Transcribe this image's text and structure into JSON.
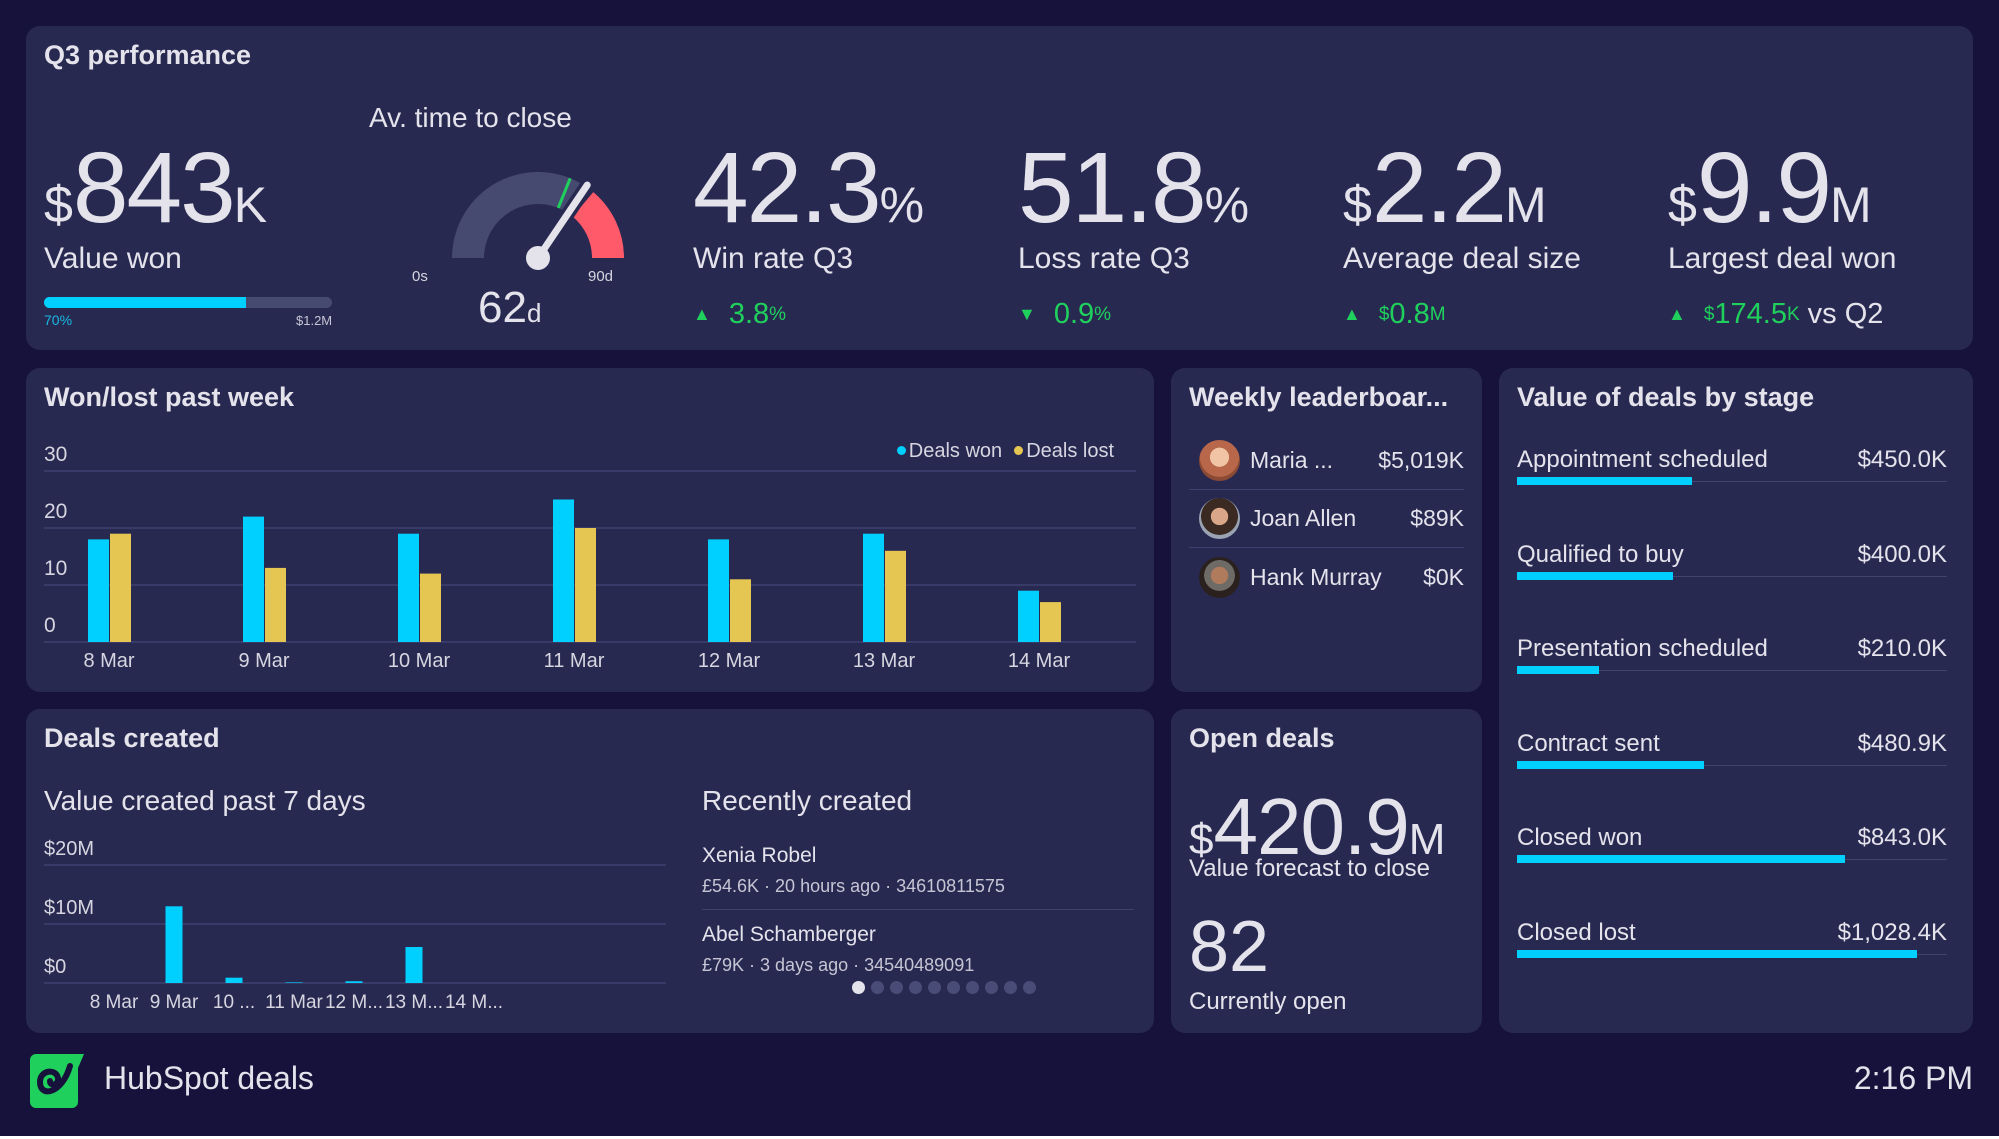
{
  "colors": {
    "background": "#17123b",
    "panel": "#282951",
    "accent_cyan": "#00d0ff",
    "accent_yellow": "#e6c653",
    "positive_green": "#1fd15c",
    "gauge_red": "#ff5a6a",
    "gauge_track": "#474a70"
  },
  "q3": {
    "title": "Q3 performance",
    "value_won": {
      "currency": "$",
      "number": "843",
      "unit": "K",
      "label": "Value won",
      "progress": 0.7,
      "progress_label": "70%",
      "target_label": "$1.2M"
    },
    "time_to_close": {
      "title": "Av. time to close",
      "value": 62,
      "value_text": "62",
      "unit": "d",
      "min_label": "0s",
      "max_label": "90d",
      "max": 90,
      "target": 56,
      "red_from": 62
    },
    "win_rate": {
      "number": "42.3",
      "unit": "%",
      "label": "Win rate Q3",
      "direction": "up",
      "delta": "3.8",
      "delta_unit": "%"
    },
    "loss_rate": {
      "number": "51.8",
      "unit": "%",
      "label": "Loss rate Q3",
      "direction": "down",
      "delta": "0.9",
      "delta_unit": "%"
    },
    "avg_deal": {
      "currency": "$",
      "number": "2.2",
      "unit": "M",
      "label": "Average deal size",
      "direction": "up",
      "delta_currency": "$",
      "delta": "0.8",
      "delta_unit": "M"
    },
    "largest_deal": {
      "currency": "$",
      "number": "9.9",
      "unit": "M",
      "label": "Largest deal won",
      "direction": "up",
      "delta_currency": "$",
      "delta": "174.5",
      "delta_unit": "K",
      "comparison": "vs Q2"
    }
  },
  "chart_data": [
    {
      "type": "bar",
      "title": "Won/lost past week",
      "categories": [
        "8 Mar",
        "9 Mar",
        "10 Mar",
        "11 Mar",
        "12 Mar",
        "13 Mar",
        "14 Mar"
      ],
      "series": [
        {
          "name": "Deals won",
          "color": "#00d0ff",
          "values": [
            18,
            22,
            19,
            25,
            18,
            19,
            9
          ]
        },
        {
          "name": "Deals lost",
          "color": "#e6c653",
          "values": [
            19,
            13,
            12,
            20,
            11,
            16,
            7
          ]
        }
      ],
      "yticks": [
        "0",
        "10",
        "20",
        "30"
      ],
      "ylim": [
        0,
        30
      ],
      "grid": true,
      "legend": "top-right",
      "xlabel": "",
      "ylabel": ""
    },
    {
      "type": "bar",
      "title": "Value created past 7 days",
      "categories": [
        "8 Mar",
        "9 Mar",
        "10 ...",
        "11 Mar",
        "12 M...",
        "13 M...",
        "14 M..."
      ],
      "series": [
        {
          "name": "Value created",
          "color": "#00d0ff",
          "values": [
            0,
            13,
            0.9,
            0.1,
            0.3,
            6.1,
            0
          ]
        }
      ],
      "yticks": [
        "$0",
        "$10M",
        "$20M"
      ],
      "ylim": [
        0,
        20
      ],
      "units": "$M",
      "grid": true,
      "xlabel": "",
      "ylabel": ""
    }
  ],
  "leaderboard": {
    "title": "Weekly leaderboar...",
    "rows": [
      {
        "name": "Maria ...",
        "value": "$5,019K",
        "avatar": "avatar-maria"
      },
      {
        "name": "Joan Allen",
        "value": "$89K",
        "avatar": "avatar-joan"
      },
      {
        "name": "Hank Murray",
        "value": "$0K",
        "avatar": "avatar-hank"
      }
    ]
  },
  "stages": {
    "title": "Value of deals by stage",
    "max": 1028.4,
    "rows": [
      {
        "label": "Appointment scheduled",
        "value_text": "$450.0K",
        "value": 450.0
      },
      {
        "label": "Qualified to buy",
        "value_text": "$400.0K",
        "value": 400.0
      },
      {
        "label": "Presentation scheduled",
        "value_text": "$210.0K",
        "value": 210.0
      },
      {
        "label": "Contract sent",
        "value_text": "$480.9K",
        "value": 480.9
      },
      {
        "label": "Closed won",
        "value_text": "$843.0K",
        "value": 843.0
      },
      {
        "label": "Closed lost",
        "value_text": "$1,028.4K",
        "value": 1028.4
      }
    ]
  },
  "deals_created": {
    "title": "Deals created",
    "chart_title": "Value created past 7 days",
    "recent_title": "Recently created",
    "recent": [
      {
        "name": "Xenia Robel",
        "meta": "£54.6K · 20 hours ago · 34610811575"
      },
      {
        "name": "Abel Schamberger",
        "meta": "£79K · 3 days ago · 34540489091"
      }
    ],
    "page_count": 10,
    "current_page": 1
  },
  "open_deals": {
    "title": "Open deals",
    "currency": "$",
    "number": "420.9",
    "unit": "M",
    "label": "Value forecast to close",
    "count": "82",
    "count_label": "Currently open"
  },
  "footer": {
    "app_name": "HubSpot deals",
    "logo_icon": "hubspot-swirl-icon",
    "time": "2:16 PM"
  }
}
